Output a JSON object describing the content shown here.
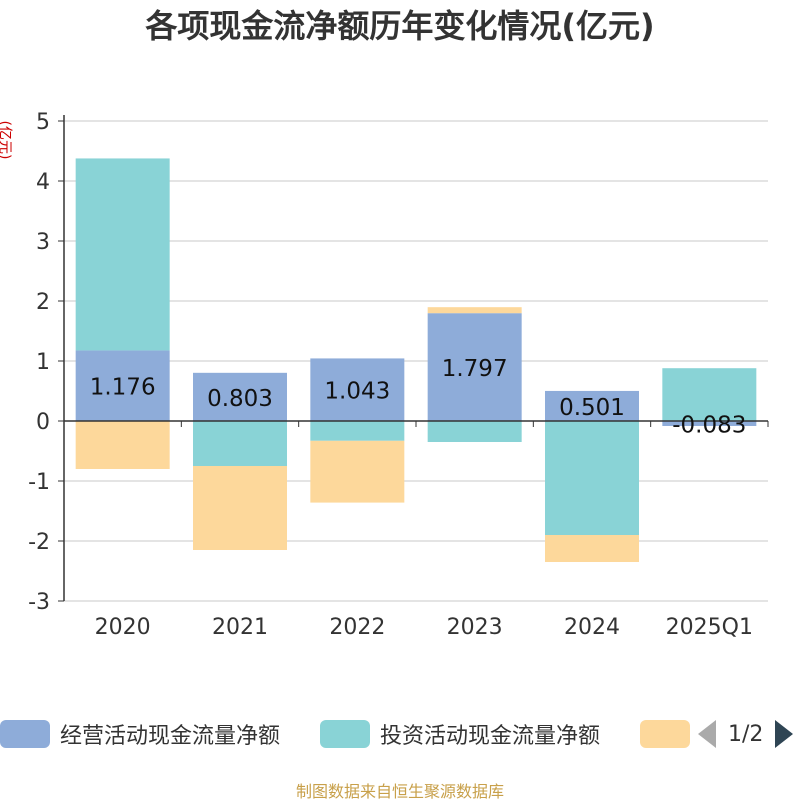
{
  "title": "各项现金流净额历年变化情况(亿元)",
  "y_unit": "(亿元)",
  "source": "制图数据来自恒生聚源数据库",
  "legend": {
    "items": [
      {
        "label": "经营活动现金流量净额",
        "color": "#8eacd9"
      },
      {
        "label": "投资活动现金流量净额",
        "color": "#89d3d6"
      },
      {
        "label": "",
        "color": "#fdd89b"
      }
    ],
    "page": "1/2"
  },
  "chart_data": {
    "type": "bar",
    "stacked": true,
    "categories": [
      "2020",
      "2021",
      "2022",
      "2023",
      "2024",
      "2025Q1"
    ],
    "ylim": [
      -3,
      5
    ],
    "yticks": [
      -3,
      -2,
      -1,
      0,
      1,
      2,
      3,
      4,
      5
    ],
    "grid": true,
    "series": [
      {
        "name": "经营活动现金流量净额",
        "color": "#8eacd9",
        "values": [
          1.176,
          0.803,
          1.043,
          1.797,
          0.501,
          -0.083
        ],
        "labels": [
          "1.176",
          "0.803",
          "1.043",
          "1.797",
          "0.501",
          "-0.083"
        ]
      },
      {
        "name": "投资活动现金流量净额",
        "color": "#89d3d6",
        "values": [
          3.2,
          -0.75,
          -0.33,
          -0.35,
          -1.9,
          0.88
        ]
      },
      {
        "color": "#fdd89b",
        "values": [
          -0.8,
          -1.4,
          -1.03,
          0.1,
          -0.45,
          0
        ]
      }
    ]
  }
}
